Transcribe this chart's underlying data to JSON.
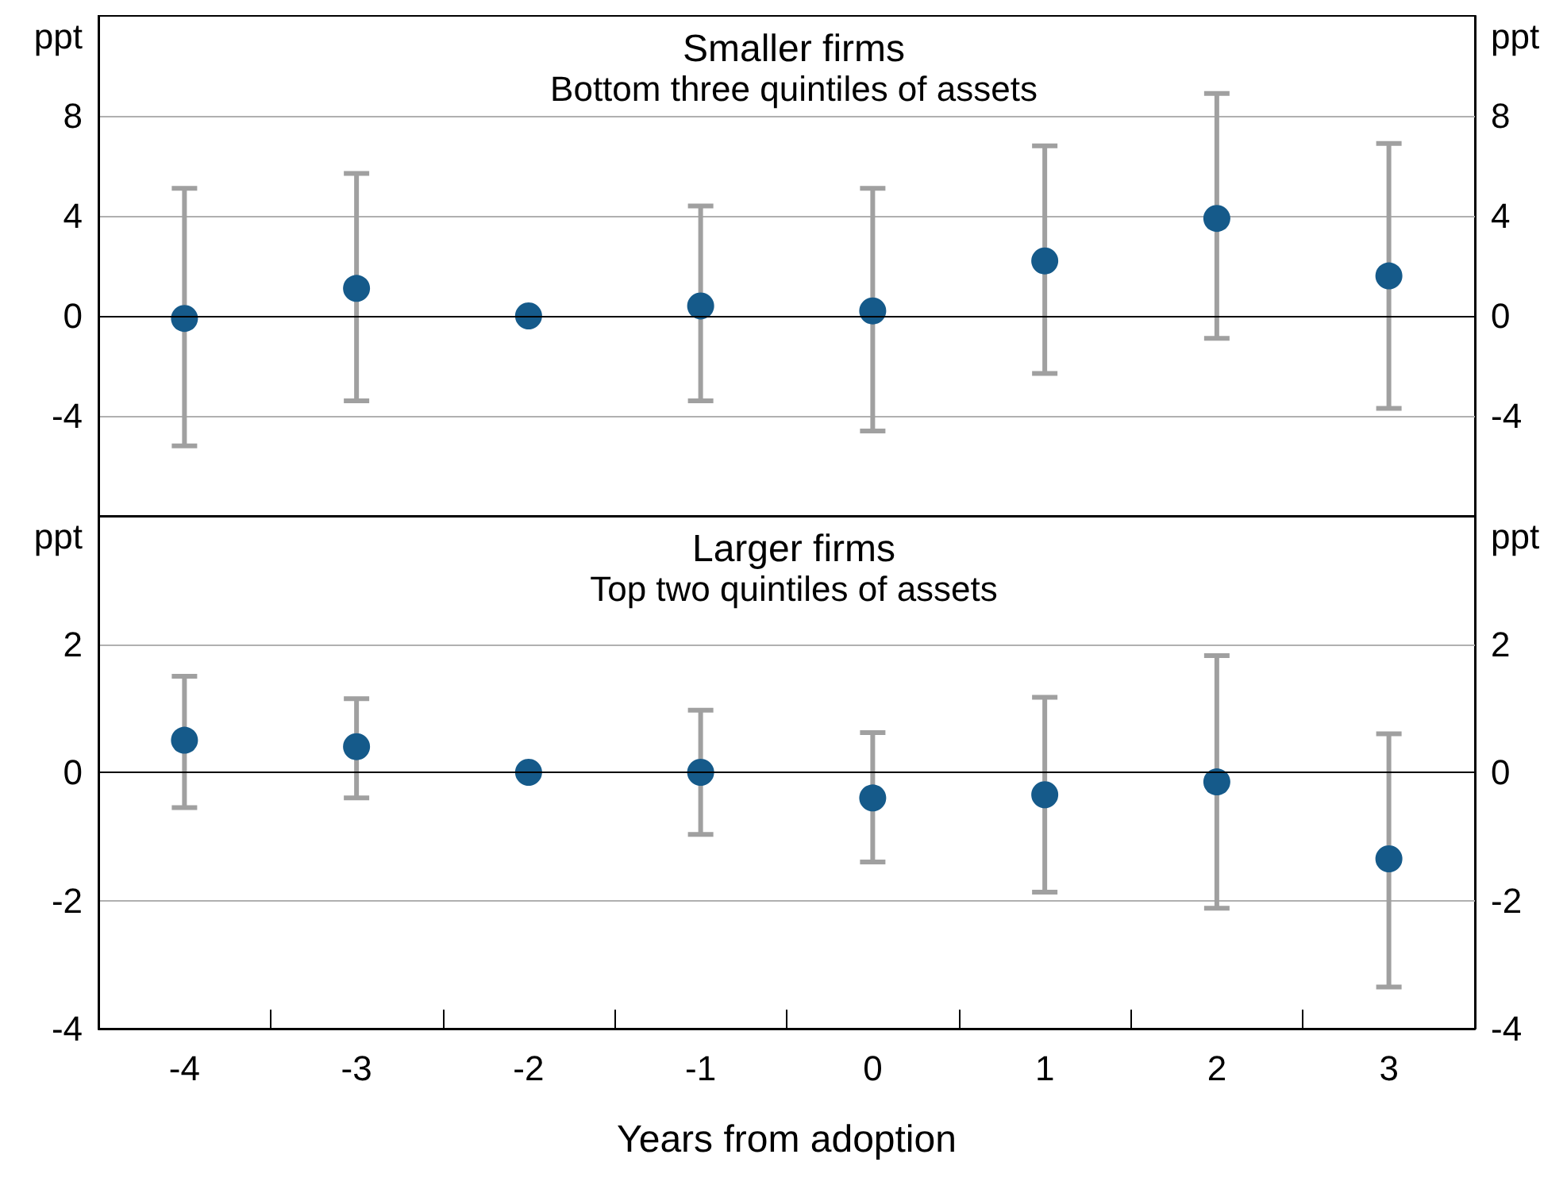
{
  "chart_data": [
    {
      "type": "scatter",
      "title": "Smaller firms",
      "subtitle": "Bottom three quintiles of assets",
      "ylabel": "ppt",
      "y2label": "ppt",
      "categories": [
        "-4",
        "-3",
        "-2",
        "-1",
        "0",
        "1",
        "2",
        "3"
      ],
      "series": [
        {
          "color": "#155a8a",
          "values": [
            -0.1,
            1.1,
            0,
            0.4,
            0.2,
            2.2,
            3.9,
            1.6
          ],
          "errors": [
            [
              -5.2,
              5.1
            ],
            [
              -3.4,
              5.7
            ],
            null,
            [
              -3.4,
              4.4
            ],
            [
              -4.6,
              5.1
            ],
            [
              -2.3,
              6.8
            ],
            [
              -0.9,
              8.9
            ],
            [
              -3.7,
              6.9
            ]
          ]
        }
      ],
      "ylim": [
        -8,
        12
      ],
      "yticks": [
        -4,
        0,
        4,
        8
      ],
      "y2lim": [
        -8,
        12
      ],
      "y2ticks": [
        -4,
        0,
        4,
        8
      ],
      "grid": "y",
      "marker": "circle",
      "tick_labels": "y",
      "ref_lines": [
        {
          "axis": "y",
          "value": 0,
          "color": "#000000"
        }
      ]
    },
    {
      "type": "scatter",
      "title": "Larger firms",
      "subtitle": "Top two quintiles of assets",
      "ylabel": "ppt",
      "y2label": "ppt",
      "xlabel": "Years from adoption",
      "categories": [
        "-4",
        "-3",
        "-2",
        "-1",
        "0",
        "1",
        "2",
        "3"
      ],
      "series": [
        {
          "color": "#155a8a",
          "values": [
            0.5,
            0.4,
            0,
            0,
            -0.4,
            -0.35,
            -0.15,
            -1.35
          ],
          "errors": [
            [
              -0.55,
              1.5
            ],
            [
              -0.4,
              1.15
            ],
            null,
            [
              -0.97,
              0.97
            ],
            [
              -1.4,
              0.62
            ],
            [
              -1.87,
              1.17
            ],
            [
              -2.12,
              1.82
            ],
            [
              -3.35,
              0.6
            ]
          ]
        }
      ],
      "ylim": [
        -4,
        4
      ],
      "yticks": [
        -4,
        -2,
        0,
        2
      ],
      "y2lim": [
        -4,
        4
      ],
      "y2ticks": [
        -4,
        -2,
        0,
        2
      ],
      "grid": "y",
      "marker": "circle",
      "ref_lines": [
        {
          "axis": "y",
          "value": 0,
          "color": "#000000"
        }
      ]
    }
  ]
}
